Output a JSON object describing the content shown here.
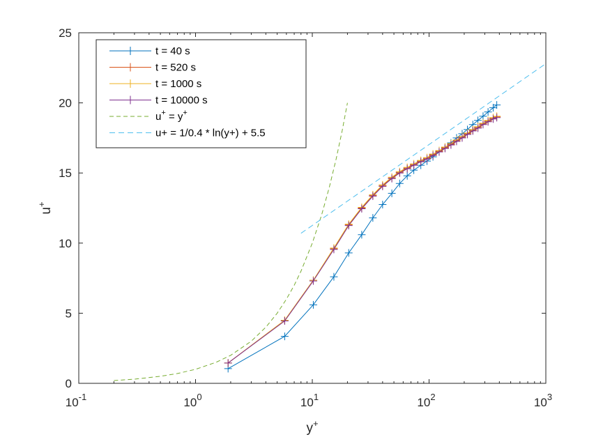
{
  "chart_data": {
    "type": "line",
    "xscale": "log",
    "xlim": [
      0.1,
      1000
    ],
    "ylim": [
      0,
      25
    ],
    "grid": false,
    "legend_position": "top-left",
    "xlabel": "y",
    "xlabel_sup": "+",
    "ylabel": "u",
    "ylabel_sup": "+",
    "x_ticks": [
      {
        "base": "10",
        "exp": "-1",
        "value": 0.1
      },
      {
        "base": "10",
        "exp": "0",
        "value": 1
      },
      {
        "base": "10",
        "exp": "1",
        "value": 10
      },
      {
        "base": "10",
        "exp": "2",
        "value": 100
      },
      {
        "base": "10",
        "exp": "3",
        "value": 1000
      }
    ],
    "y_ticks": [
      {
        "label": "0",
        "value": 0
      },
      {
        "label": "5",
        "value": 5
      },
      {
        "label": "10",
        "value": 10
      },
      {
        "label": "15",
        "value": 15
      },
      {
        "label": "20",
        "value": 20
      },
      {
        "label": "25",
        "value": 25
      }
    ],
    "series": [
      {
        "name": "t = 40 s",
        "color": "#0072BD",
        "marker": "+",
        "x": [
          1.9,
          5.8,
          10.2,
          15.3,
          20.5,
          26.5,
          33,
          40,
          48,
          56,
          65,
          74,
          85,
          96,
          108,
          122,
          137,
          154,
          172,
          192,
          213,
          237,
          262,
          290,
          320,
          354,
          380
        ],
        "y": [
          1.05,
          3.35,
          5.6,
          7.6,
          9.3,
          10.6,
          11.8,
          12.75,
          13.55,
          14.25,
          14.8,
          15.2,
          15.55,
          15.85,
          16.15,
          16.5,
          16.8,
          17.15,
          17.5,
          17.8,
          18.1,
          18.45,
          18.75,
          19.05,
          19.35,
          19.65,
          19.85
        ]
      },
      {
        "name": "t = 520 s",
        "color": "#D95319",
        "marker": "+",
        "x": [
          1.9,
          5.8,
          10.2,
          15.3,
          20.5,
          26.5,
          33,
          40,
          48,
          56,
          65,
          74,
          85,
          96,
          108,
          122,
          137,
          154,
          172,
          192,
          213,
          237,
          262,
          290,
          320,
          354,
          380
        ],
        "y": [
          1.45,
          4.5,
          7.35,
          9.6,
          11.3,
          12.5,
          13.4,
          14.1,
          14.65,
          15.05,
          15.35,
          15.6,
          15.85,
          16.05,
          16.3,
          16.55,
          16.8,
          17.05,
          17.3,
          17.55,
          17.8,
          18.05,
          18.25,
          18.5,
          18.7,
          18.9,
          19.0
        ]
      },
      {
        "name": "t = 1000 s",
        "color": "#EDB120",
        "marker": "+",
        "x": [
          1.9,
          5.8,
          10.2,
          15.3,
          20.5,
          26.5,
          33,
          40,
          48,
          56,
          65,
          74,
          85,
          96,
          108,
          122,
          137,
          154,
          172,
          192,
          213,
          237,
          262,
          290,
          320,
          354,
          380
        ],
        "y": [
          1.45,
          4.5,
          7.35,
          9.65,
          11.35,
          12.55,
          13.45,
          14.15,
          14.7,
          15.1,
          15.4,
          15.65,
          15.9,
          16.1,
          16.35,
          16.6,
          16.85,
          17.1,
          17.35,
          17.6,
          17.85,
          18.1,
          18.3,
          18.55,
          18.75,
          18.95,
          19.05
        ]
      },
      {
        "name": "t = 10000 s",
        "color": "#7E2F8E",
        "marker": "+",
        "x": [
          1.9,
          5.8,
          10.2,
          15.3,
          20.5,
          26.5,
          33,
          40,
          48,
          56,
          65,
          74,
          85,
          96,
          108,
          122,
          137,
          154,
          172,
          192,
          213,
          237,
          262,
          290,
          320,
          354,
          380
        ],
        "y": [
          1.45,
          4.45,
          7.3,
          9.55,
          11.25,
          12.45,
          13.35,
          14.05,
          14.6,
          15.0,
          15.3,
          15.55,
          15.8,
          16.0,
          16.25,
          16.5,
          16.75,
          17.0,
          17.25,
          17.5,
          17.75,
          18.0,
          18.2,
          18.45,
          18.65,
          18.85,
          18.95
        ]
      },
      {
        "name": "u+ = y+",
        "legend_base": "u",
        "legend_sup": "+",
        "legend_mid": " = y",
        "legend_sup2": "+",
        "color": "#77AC30",
        "dash": "6,4",
        "x": [
          0.2,
          0.3,
          0.5,
          0.7,
          1,
          1.5,
          2,
          3,
          4,
          5,
          6,
          7,
          8,
          10,
          12,
          14,
          16,
          18,
          20
        ],
        "y": [
          0.2,
          0.3,
          0.5,
          0.7,
          1,
          1.5,
          2,
          3,
          4,
          5,
          6,
          7,
          8,
          10,
          12,
          14,
          16,
          18,
          20
        ]
      },
      {
        "name": "u+ = 1/0.4 * ln(y+) + 5.5",
        "color": "#4DBEEE",
        "dash": "8,5",
        "x": [
          8,
          1000
        ],
        "y": [
          10.7,
          22.8
        ]
      }
    ]
  }
}
